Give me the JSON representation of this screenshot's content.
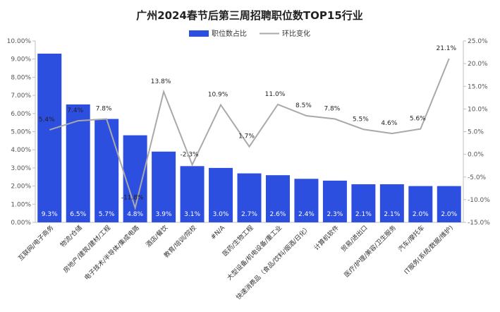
{
  "chart_data": {
    "type": "bar",
    "title": "广州2024春节后第三周招聘职位数TOP15行业",
    "categories": [
      "互联网/电子商务",
      "物流/仓储",
      "房地产/建筑/建材/工程",
      "电子技术/半导体/集成电路",
      "酒店/餐饮",
      "教育/培训/院校",
      "#N/A",
      "医药/生物工程",
      "大型设备/机电设备/重工业",
      "快速消费品（食品/饮料/烟酒/日化）",
      "计算机软件",
      "贸易/进出口",
      "医疗/护理/美容/卫生服务",
      "汽车/摩托车",
      "IT服务(系统/数据/维护)"
    ],
    "series": [
      {
        "name": "职位数占比",
        "kind": "bar",
        "axis": "left",
        "color": "#2d4fe0",
        "values": [
          9.3,
          6.5,
          5.7,
          4.8,
          3.9,
          3.1,
          3.0,
          2.7,
          2.6,
          2.4,
          2.3,
          2.1,
          2.1,
          2.0,
          2.0
        ],
        "labels": [
          "9.3%",
          "6.5%",
          "5.7%",
          "4.8%",
          "3.9%",
          "3.1%",
          "3.0%",
          "2.7%",
          "2.6%",
          "2.4%",
          "2.3%",
          "2.1%",
          "2.1%",
          "2.0%",
          "2.0%"
        ]
      },
      {
        "name": "环比变化",
        "kind": "line",
        "axis": "right",
        "color": "#a9a9a9",
        "values": [
          5.4,
          7.4,
          7.8,
          -11.8,
          13.8,
          -2.3,
          10.9,
          1.7,
          11.0,
          8.5,
          7.8,
          5.5,
          4.6,
          5.6,
          21.1
        ],
        "labels": [
          "5.4%",
          "7.4%",
          "7.8%",
          "-11.8%",
          "13.8%",
          "-2.3%",
          "10.9%",
          "1.7%",
          "11.0%",
          "8.5%",
          "7.8%",
          "5.5%",
          "4.6%",
          "5.6%",
          "21.1%"
        ]
      }
    ],
    "y_left": {
      "min": 0,
      "max": 10,
      "step": 1,
      "tick_labels": [
        "0.00%",
        "1.00%",
        "2.00%",
        "3.00%",
        "4.00%",
        "5.00%",
        "6.00%",
        "7.00%",
        "8.00%",
        "9.00%",
        "10.00%"
      ]
    },
    "y_right": {
      "min": -15,
      "max": 25,
      "step": 5,
      "tick_labels": [
        "-15.0%",
        "-10.0%",
        "-5.0%",
        "0.0%",
        "5.0%",
        "10.0%",
        "15.0%",
        "20.0%",
        "25.0%"
      ]
    },
    "grid": false,
    "legend": "top-center"
  }
}
